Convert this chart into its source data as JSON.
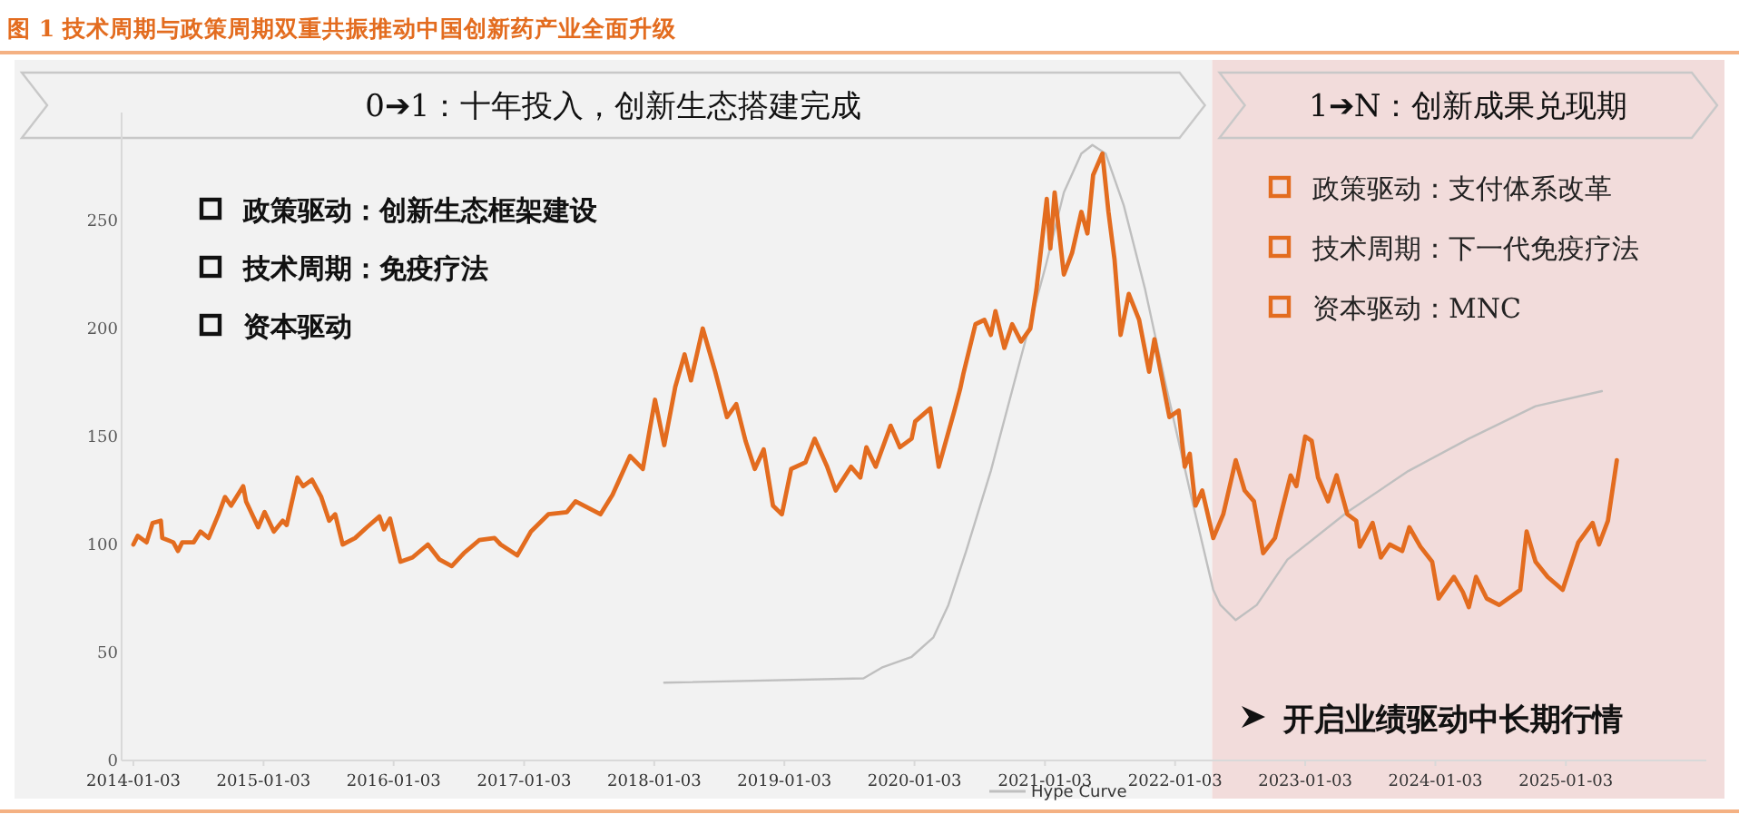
{
  "chart_data": {
    "type": "line",
    "title": "图 1 技术周期与政策周期双重共振推动中国创新药产业全面升级",
    "xlim": [
      "2013-12-01",
      "2026-02-01"
    ],
    "ylim": [
      0,
      300
    ],
    "xticks": [
      "2014-01-03",
      "2015-01-03",
      "2016-01-03",
      "2017-01-03",
      "2018-01-03",
      "2019-01-03",
      "2020-01-03",
      "2021-01-03",
      "2022-01-03",
      "2023-01-03",
      "2024-01-03",
      "2025-01-03"
    ],
    "yticks": [
      0,
      50,
      100,
      150,
      200,
      250
    ],
    "legend": "bottom",
    "bands": [
      {
        "axis": "x",
        "from": "2013-12-01",
        "to": "2022-04-17",
        "label": "0➔1：十年投入，创新生态搭建完成",
        "color": "#f2f2f2"
      },
      {
        "axis": "x",
        "from": "2022-04-17",
        "to": "2026-02-01",
        "label": "1➔N：创新成果兑现期",
        "color": "#f2dcdb"
      }
    ],
    "annotations": [
      "政策驱动：创新生态框架建设",
      "技术周期：免疫疗法",
      "资本驱动",
      "政策驱动：支付体系改革",
      "技术周期：下一代免疫疗法",
      "资本驱动：MNC",
      "开启业绩驱动中长期行情"
    ],
    "series": [
      {
        "color": "#e36c1f",
        "x": [
          "2014-01-03",
          "2014-01-15",
          "2014-02-09",
          "2014-02-26",
          "2014-03-21",
          "2014-03-25",
          "2014-04-25",
          "2014-05-08",
          "2014-05-20",
          "2014-06-21",
          "2014-07-10",
          "2014-08-02",
          "2014-08-30",
          "2014-09-17",
          "2014-10-04",
          "2014-11-07",
          "2014-11-15",
          "2014-12-19",
          "2015-01-06",
          "2015-02-01",
          "2015-02-26",
          "2015-03-09",
          "2015-04-08",
          "2015-04-24",
          "2015-05-19",
          "2015-06-14",
          "2015-07-06",
          "2015-07-23",
          "2015-08-13",
          "2015-09-17",
          "2015-10-20",
          "2015-11-24",
          "2015-12-07",
          "2015-12-24",
          "2016-01-22",
          "2016-02-25",
          "2016-04-08",
          "2016-05-11",
          "2016-06-14",
          "2016-07-18",
          "2016-08-30",
          "2016-10-12",
          "2016-10-29",
          "2016-12-15",
          "2017-01-22",
          "2017-03-12",
          "2017-05-03",
          "2017-05-27",
          "2017-08-05",
          "2017-09-08",
          "2017-10-27",
          "2017-12-02",
          "2018-01-05",
          "2018-01-31",
          "2018-03-03",
          "2018-03-29",
          "2018-04-16",
          "2018-05-19",
          "2018-06-23",
          "2018-07-26",
          "2018-08-21",
          "2018-09-16",
          "2018-10-12",
          "2018-11-06",
          "2018-12-02",
          "2018-12-27",
          "2019-01-22",
          "2019-03-03",
          "2019-03-29",
          "2019-05-03",
          "2019-05-27",
          "2019-07-09",
          "2019-08-04",
          "2019-08-21",
          "2019-09-16",
          "2019-10-28",
          "2019-11-23",
          "2019-12-26",
          "2020-01-05",
          "2020-02-16",
          "2020-03-11",
          "2020-04-24",
          "2020-05-10",
          "2020-05-19",
          "2020-06-22",
          "2020-07-17",
          "2020-08-04",
          "2020-08-17",
          "2020-09-11",
          "2020-10-03",
          "2020-10-28",
          "2020-11-23",
          "2020-12-10",
          "2021-01-08",
          "2021-01-18",
          "2021-01-30",
          "2021-02-25",
          "2021-03-20",
          "2021-04-15",
          "2021-05-02",
          "2021-05-18",
          "2021-06-13",
          "2021-06-30",
          "2021-07-17",
          "2021-08-03",
          "2021-08-26",
          "2021-09-24",
          "2021-10-22",
          "2021-11-06",
          "2021-12-18",
          "2022-01-13",
          "2022-01-30",
          "2022-02-13",
          "2022-03-01",
          "2022-03-20",
          "2022-04-20",
          "2022-05-18",
          "2022-06-22",
          "2022-07-17",
          "2022-08-12",
          "2022-09-07",
          "2022-10-10",
          "2022-11-23",
          "2022-12-09",
          "2023-01-03",
          "2023-01-21",
          "2023-02-08",
          "2023-03-08",
          "2023-04-01",
          "2023-05-01",
          "2023-05-26",
          "2023-06-05",
          "2023-07-11",
          "2023-08-03",
          "2023-08-28",
          "2023-10-02",
          "2023-10-22",
          "2023-11-22",
          "2023-12-25",
          "2024-01-12",
          "2024-02-24",
          "2024-03-20",
          "2024-04-06",
          "2024-04-26",
          "2024-05-26",
          "2024-06-30",
          "2024-08-03",
          "2024-08-28",
          "2024-09-15",
          "2024-10-10",
          "2024-11-13",
          "2024-12-25",
          "2025-02-07",
          "2025-03-19",
          "2025-04-06",
          "2025-05-01",
          "2025-05-26"
        ],
        "values": [
          100,
          104,
          101,
          110,
          111,
          103,
          101,
          97,
          101,
          101,
          106,
          103,
          114,
          122,
          118,
          127,
          120,
          108,
          115,
          106,
          111,
          109,
          131,
          127,
          130,
          122,
          111,
          114,
          100,
          103,
          108,
          113,
          107,
          112,
          92,
          94,
          100,
          93,
          90,
          96,
          102,
          103,
          100,
          95,
          106,
          114,
          115,
          120,
          114,
          123,
          141,
          135,
          167,
          146,
          173,
          188,
          176,
          200,
          180,
          159,
          165,
          148,
          135,
          144,
          118,
          114,
          135,
          138,
          149,
          136,
          125,
          136,
          131,
          145,
          136,
          155,
          145,
          149,
          157,
          163,
          136,
          162,
          172,
          179,
          202,
          204,
          197,
          208,
          191,
          202,
          194,
          200,
          218,
          260,
          237,
          263,
          225,
          235,
          254,
          244,
          271,
          281,
          254,
          232,
          197,
          216,
          204,
          180,
          195,
          159,
          162,
          136,
          142,
          118,
          125,
          103,
          114,
          139,
          125,
          120,
          96,
          103,
          132,
          127,
          150,
          148,
          131,
          120,
          132,
          114,
          111,
          99,
          110,
          94,
          100,
          97,
          108,
          99,
          92,
          75,
          85,
          78,
          71,
          85,
          75,
          72,
          76,
          79,
          106,
          92,
          85,
          79,
          101,
          110,
          100,
          111,
          139
        ]
      },
      {
        "name": "Hype Curve",
        "color": "#bfbfbf",
        "x": [
          "2018-01-31",
          "2019-08-13",
          "2019-10-03",
          "2019-12-26",
          "2020-02-25",
          "2020-04-07",
          "2020-05-27",
          "2020-08-04",
          "2020-10-28",
          "2021-01-05",
          "2021-02-25",
          "2021-04-15",
          "2021-05-16",
          "2021-06-22",
          "2021-08-12",
          "2021-10-11",
          "2021-12-09",
          "2022-02-16",
          "2022-04-20",
          "2022-05-10",
          "2022-06-22",
          "2022-08-20",
          "2022-11-14",
          "2023-05-01",
          "2023-10-19",
          "2024-04-06",
          "2024-10-10",
          "2025-04-14"
        ],
        "values": [
          36,
          38,
          43,
          48,
          57,
          72,
          97,
          134,
          187,
          229,
          263,
          281,
          285,
          281,
          257,
          218,
          173,
          123,
          79,
          72,
          65,
          72,
          93,
          115,
          134,
          149,
          164,
          171
        ]
      }
    ]
  }
}
